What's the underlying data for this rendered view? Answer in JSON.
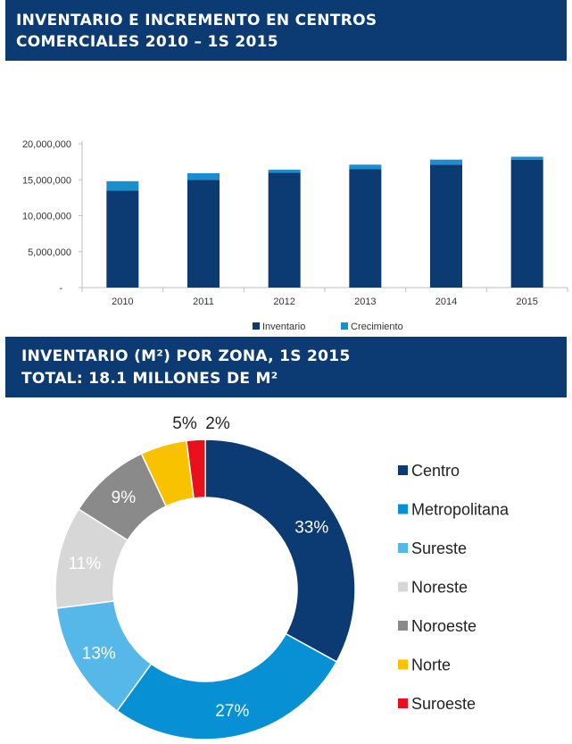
{
  "banner_top": {
    "line1": "INVENTARIO E INCREMENTO EN CENTROS",
    "line2": "COMERCIALES 2010 – 1S 2015"
  },
  "banner_bottom": {
    "line1": "INVENTARIO (M²) POR ZONA,  1S 2015",
    "line2": "TOTAL: 18.1 MILLONES DE M²"
  },
  "chart_data": [
    {
      "type": "bar",
      "stacked": true,
      "title": "",
      "xlabel": "",
      "ylabel": "",
      "categories": [
        "2010",
        "2011",
        "2012",
        "2013",
        "2014",
        "2015"
      ],
      "series": [
        {
          "name": "Inventario",
          "color": "#0b3b72",
          "values": [
            13500000,
            15000000,
            16000000,
            16500000,
            17100000,
            17800000
          ]
        },
        {
          "name": "Crecimiento",
          "color": "#1a8fd0",
          "values": [
            1300000,
            900000,
            400000,
            600000,
            700000,
            400000
          ]
        }
      ],
      "yticks": [
        {
          "value": 0,
          "label": "-"
        },
        {
          "value": 5000000,
          "label": "5,000,000"
        },
        {
          "value": 10000000,
          "label": "10,000,000"
        },
        {
          "value": 15000000,
          "label": "15,000,000"
        },
        {
          "value": 20000000,
          "label": "20,000,000"
        }
      ],
      "ylim": [
        0,
        20000000
      ],
      "grid": false,
      "legend_position": "bottom"
    },
    {
      "type": "pie",
      "donut": true,
      "title": "",
      "slices": [
        {
          "name": "Centro",
          "value": 33,
          "label": "33%",
          "color": "#0b3b72",
          "label_color": "#ffffff"
        },
        {
          "name": "Metropolitana",
          "value": 27,
          "label": "27%",
          "color": "#0791d4",
          "label_color": "#ffffff"
        },
        {
          "name": "Sureste",
          "value": 13,
          "label": "13%",
          "color": "#55b8e8",
          "label_color": "#ffffff"
        },
        {
          "name": "Noreste",
          "value": 11,
          "label": "11%",
          "color": "#d7d7d7",
          "label_color": "#ffffff"
        },
        {
          "name": "Noroeste",
          "value": 9,
          "label": "9%",
          "color": "#8a8a8a",
          "label_color": "#ffffff"
        },
        {
          "name": "Norte",
          "value": 5,
          "label": "5%",
          "color": "#f8c200",
          "label_color": "#222222"
        },
        {
          "name": "Suroeste",
          "value": 2,
          "label": "2%",
          "color": "#e8101a",
          "label_color": "#222222"
        }
      ],
      "legend_position": "right"
    }
  ]
}
